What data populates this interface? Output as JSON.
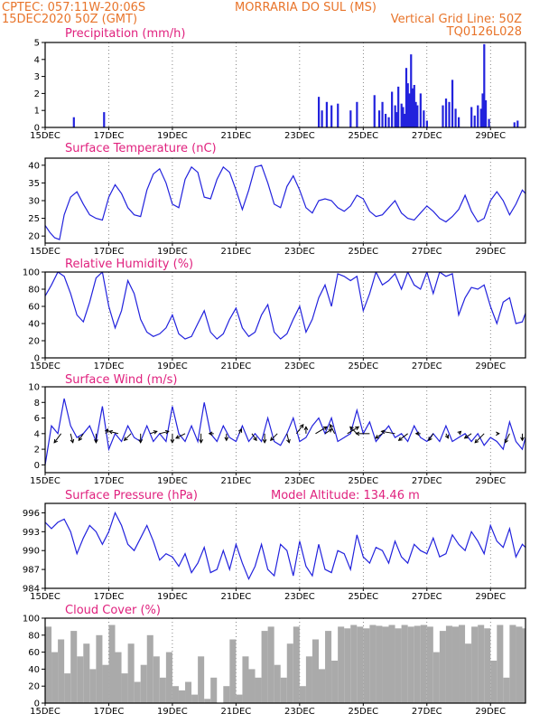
{
  "header": {
    "line1_left": "CPTEC:  057:11W-20:06S",
    "line1_right": "MORRARIA DO SUL (MS)",
    "line2_left": "15DEC2020 50Z (GMT)",
    "line2_right": "Vertical Grid Line: 50Z",
    "line3_right": "TQ0126L028",
    "model_altitude": "Model Altitude: 134.46 m"
  },
  "colors": {
    "header": "#e8742a",
    "title": "#e0217e",
    "series": "#2222dd",
    "cloud": "#aaaaaa",
    "arrow": "#000000"
  },
  "chart_data": [
    {
      "type": "bar",
      "title": "Precipitation (mm/h)",
      "ylim": [
        0,
        5
      ],
      "yticks": [
        0,
        1,
        2,
        3,
        4,
        5
      ],
      "xlim": [
        15,
        30.1
      ],
      "x_tick_positions": [
        15,
        17,
        19,
        21,
        23,
        25,
        27,
        29
      ],
      "x_tick_labels": [
        "15DEC",
        "17DEC",
        "19DEC",
        "21DEC",
        "23DEC",
        "25DEC",
        "27DEC",
        "29DEC"
      ],
      "x": [
        15.9,
        16.85,
        23.6,
        23.7,
        23.85,
        24.0,
        24.2,
        24.6,
        24.8,
        25.35,
        25.5,
        25.6,
        25.7,
        25.8,
        25.9,
        26.0,
        26.05,
        26.1,
        26.2,
        26.25,
        26.3,
        26.35,
        26.4,
        26.45,
        26.5,
        26.55,
        26.6,
        26.65,
        26.7,
        26.8,
        26.9,
        27.0,
        27.5,
        27.6,
        27.7,
        27.8,
        27.9,
        28.0,
        28.4,
        28.5,
        28.6,
        28.7,
        28.75,
        28.8,
        28.85,
        28.95,
        29.75,
        29.85
      ],
      "values": [
        0.6,
        0.9,
        1.8,
        1.0,
        1.5,
        1.3,
        1.4,
        1.0,
        1.5,
        1.9,
        1.0,
        1.5,
        0.8,
        0.6,
        2.1,
        1.3,
        0.9,
        2.4,
        1.4,
        1.2,
        0.8,
        3.5,
        2.6,
        2.0,
        4.3,
        2.3,
        2.5,
        1.5,
        1.3,
        2.0,
        1.0,
        0.4,
        1.3,
        1.7,
        1.5,
        2.8,
        1.1,
        0.6,
        1.2,
        0.7,
        1.3,
        1.1,
        2.0,
        4.9,
        1.6,
        0.5,
        0.3,
        0.4
      ]
    },
    {
      "type": "line",
      "title": "Surface Temperature (nC)",
      "ylim": [
        18,
        42
      ],
      "yticks": [
        20,
        25,
        30,
        35,
        40
      ],
      "xlim": [
        15,
        30.1
      ],
      "x_tick_positions": [
        15,
        17,
        19,
        21,
        23,
        25,
        27,
        29
      ],
      "x_tick_labels": [
        "15DEC",
        "17DEC",
        "19DEC",
        "21DEC",
        "23DEC",
        "25DEC",
        "27DEC",
        "29DEC"
      ],
      "x": [
        15.0,
        15.15,
        15.3,
        15.45,
        15.6,
        15.8,
        16.0,
        16.2,
        16.4,
        16.6,
        16.8,
        17.0,
        17.2,
        17.4,
        17.6,
        17.8,
        18.0,
        18.2,
        18.4,
        18.6,
        18.8,
        19.0,
        19.2,
        19.4,
        19.6,
        19.8,
        20.0,
        20.2,
        20.4,
        20.6,
        20.8,
        21.0,
        21.2,
        21.4,
        21.6,
        21.8,
        22.0,
        22.2,
        22.4,
        22.6,
        22.8,
        23.0,
        23.2,
        23.4,
        23.6,
        23.8,
        24.0,
        24.2,
        24.4,
        24.6,
        24.8,
        25.0,
        25.2,
        25.4,
        25.6,
        25.8,
        26.0,
        26.2,
        26.4,
        26.6,
        26.8,
        27.0,
        27.2,
        27.4,
        27.6,
        27.8,
        28.0,
        28.2,
        28.4,
        28.6,
        28.8,
        29.0,
        29.2,
        29.4,
        29.6,
        29.8,
        30.0,
        30.1
      ],
      "values": [
        23,
        21,
        19.5,
        19,
        26,
        31,
        32.5,
        29,
        26,
        25,
        24.5,
        31,
        34.5,
        32,
        28,
        26,
        25.5,
        33,
        37.5,
        39,
        35,
        29,
        28,
        36,
        39.5,
        38,
        31,
        30.5,
        36,
        39.5,
        38,
        33,
        27.5,
        33,
        39.5,
        40,
        35,
        29,
        28,
        34,
        37,
        33,
        28,
        26.5,
        30,
        30.5,
        30,
        28,
        27,
        28.5,
        31.5,
        30.5,
        27,
        25.5,
        26,
        28,
        30,
        26.5,
        25,
        24.5,
        26.5,
        28.5,
        27,
        25,
        24,
        25.5,
        27.5,
        31.5,
        27,
        24,
        25,
        30,
        32.5,
        30,
        26,
        29,
        33,
        32
      ]
    },
    {
      "type": "line",
      "title": "Relative Humidity (%)",
      "ylim": [
        0,
        100
      ],
      "yticks": [
        0,
        20,
        40,
        60,
        80,
        100
      ],
      "xlim": [
        15,
        30.1
      ],
      "x_tick_positions": [
        15,
        17,
        19,
        21,
        23,
        25,
        27,
        29
      ],
      "x_tick_labels": [
        "15DEC",
        "17DEC",
        "19DEC",
        "21DEC",
        "23DEC",
        "25DEC",
        "27DEC",
        "29DEC"
      ],
      "x": [
        15.0,
        15.2,
        15.4,
        15.6,
        15.8,
        16.0,
        16.2,
        16.4,
        16.6,
        16.8,
        17.0,
        17.2,
        17.4,
        17.6,
        17.8,
        18.0,
        18.2,
        18.4,
        18.6,
        18.8,
        19.0,
        19.2,
        19.4,
        19.6,
        19.8,
        20.0,
        20.2,
        20.4,
        20.6,
        20.8,
        21.0,
        21.2,
        21.4,
        21.6,
        21.8,
        22.0,
        22.2,
        22.4,
        22.6,
        22.8,
        23.0,
        23.2,
        23.4,
        23.6,
        23.8,
        24.0,
        24.2,
        24.4,
        24.6,
        24.8,
        25.0,
        25.2,
        25.4,
        25.6,
        25.8,
        26.0,
        26.2,
        26.4,
        26.6,
        26.8,
        27.0,
        27.2,
        27.4,
        27.6,
        27.8,
        28.0,
        28.2,
        28.4,
        28.6,
        28.8,
        29.0,
        29.2,
        29.4,
        29.6,
        29.8,
        30.0,
        30.1
      ],
      "values": [
        72,
        85,
        100,
        95,
        75,
        50,
        42,
        65,
        93,
        100,
        60,
        35,
        55,
        90,
        75,
        45,
        30,
        25,
        28,
        35,
        50,
        28,
        22,
        25,
        40,
        55,
        30,
        22,
        28,
        45,
        58,
        35,
        25,
        30,
        50,
        62,
        30,
        22,
        28,
        45,
        60,
        30,
        45,
        70,
        85,
        60,
        98,
        95,
        90,
        95,
        55,
        75,
        100,
        85,
        90,
        98,
        80,
        100,
        85,
        80,
        100,
        75,
        100,
        95,
        98,
        50,
        70,
        82,
        80,
        85,
        60,
        40,
        65,
        70,
        40,
        42,
        52
      ]
    },
    {
      "type": "line",
      "title": "Surface Wind (m/s)",
      "ylim": [
        -1,
        10
      ],
      "yticks": [
        0,
        2,
        4,
        6,
        8,
        10
      ],
      "xlim": [
        15,
        30.1
      ],
      "x_tick_positions": [
        15,
        17,
        19,
        21,
        23,
        25,
        27,
        29
      ],
      "x_tick_labels": [
        "15DEC",
        "17DEC",
        "19DEC",
        "21DEC",
        "23DEC",
        "25DEC",
        "27DEC",
        "29DEC"
      ],
      "x": [
        15.0,
        15.2,
        15.4,
        15.6,
        15.8,
        16.0,
        16.2,
        16.4,
        16.6,
        16.8,
        17.0,
        17.2,
        17.4,
        17.6,
        17.8,
        18.0,
        18.2,
        18.4,
        18.6,
        18.8,
        19.0,
        19.2,
        19.4,
        19.6,
        19.8,
        20.0,
        20.2,
        20.4,
        20.6,
        20.8,
        21.0,
        21.2,
        21.4,
        21.6,
        21.8,
        22.0,
        22.2,
        22.4,
        22.6,
        22.8,
        23.0,
        23.2,
        23.4,
        23.6,
        23.8,
        24.0,
        24.2,
        24.4,
        24.6,
        24.8,
        25.0,
        25.2,
        25.4,
        25.6,
        25.8,
        26.0,
        26.2,
        26.4,
        26.6,
        26.8,
        27.0,
        27.2,
        27.4,
        27.6,
        27.8,
        28.0,
        28.2,
        28.4,
        28.6,
        28.8,
        29.0,
        29.2,
        29.4,
        29.6,
        29.8,
        30.0,
        30.1
      ],
      "values": [
        0,
        5,
        4,
        8.5,
        5,
        3.5,
        4,
        5,
        3,
        7.5,
        2,
        4,
        3,
        5,
        3.5,
        3,
        5,
        3,
        4,
        3,
        7.5,
        4,
        3,
        5,
        3,
        8,
        4,
        3,
        5,
        3.5,
        3,
        5,
        3,
        4,
        3,
        6,
        3,
        2.5,
        4,
        6,
        3,
        3.5,
        5,
        6,
        4,
        6,
        3,
        3.5,
        4,
        7,
        4,
        5.5,
        3,
        4,
        5,
        3.5,
        4,
        3,
        5,
        3.5,
        3,
        4,
        3,
        5,
        3,
        3.5,
        4,
        3,
        4,
        2.5,
        3.5,
        3,
        2,
        5.5,
        3,
        2,
        3.5
      ],
      "vector_x": [
        15.5,
        15.8,
        16.2,
        16.6,
        16.9,
        17.3,
        17.7,
        18.0,
        18.3,
        18.6,
        19.0,
        19.4,
        19.9,
        20.3,
        20.7,
        21.1,
        21.5,
        21.9,
        22.3,
        22.6,
        22.9,
        23.2,
        23.5,
        23.8,
        24.1,
        24.5,
        24.8,
        25.2,
        25.6,
        26.0,
        26.4,
        26.8,
        27.2,
        27.6,
        28.0,
        28.4,
        28.8,
        29.2,
        29.6,
        30.0
      ],
      "vector_u": [
        -1.5,
        0.5,
        -1,
        0,
        0.5,
        -2,
        -1.5,
        0,
        1.5,
        2,
        0,
        -2,
        0,
        -1,
        0,
        0.5,
        1,
        0,
        -1.5,
        0.5,
        1.5,
        0,
        2.5,
        1.5,
        -1,
        2.5,
        -1.5,
        -3,
        -1.5,
        -3,
        -2,
        -1,
        -1,
        0.5,
        0.5,
        -1.5,
        -2,
        0.5,
        -1,
        0
      ],
      "vector_v": [
        -2,
        -2,
        -1.5,
        -2,
        1,
        0.5,
        -1.5,
        -2,
        0.5,
        0.5,
        -2,
        -1,
        -2,
        0,
        -1.5,
        1,
        -1.5,
        -2,
        -1.5,
        -2,
        2,
        1.5,
        1.5,
        1,
        2,
        1.5,
        1.5,
        0,
        -1,
        0.5,
        -1.5,
        0,
        -1.5,
        -1,
        0.5,
        -1,
        -2,
        0,
        -2,
        -1.5
      ]
    },
    {
      "type": "line",
      "title": "Surface Pressure (hPa)",
      "ylim": [
        984,
        997.5
      ],
      "yticks": [
        984,
        987,
        990,
        993,
        996
      ],
      "xlim": [
        15,
        30.1
      ],
      "x_tick_positions": [
        15,
        17,
        19,
        21,
        23,
        25,
        27,
        29
      ],
      "x_tick_labels": [
        "15DEC",
        "17DEC",
        "19DEC",
        "21DEC",
        "23DEC",
        "25DEC",
        "27DEC",
        "29DEC"
      ],
      "x": [
        15.0,
        15.2,
        15.4,
        15.6,
        15.8,
        16.0,
        16.2,
        16.4,
        16.6,
        16.8,
        17.0,
        17.2,
        17.4,
        17.6,
        17.8,
        18.0,
        18.2,
        18.4,
        18.6,
        18.8,
        19.0,
        19.2,
        19.4,
        19.6,
        19.8,
        20.0,
        20.2,
        20.4,
        20.6,
        20.8,
        21.0,
        21.2,
        21.4,
        21.6,
        21.8,
        22.0,
        22.2,
        22.4,
        22.6,
        22.8,
        23.0,
        23.2,
        23.4,
        23.6,
        23.8,
        24.0,
        24.2,
        24.4,
        24.6,
        24.8,
        25.0,
        25.2,
        25.4,
        25.6,
        25.8,
        26.0,
        26.2,
        26.4,
        26.6,
        26.8,
        27.0,
        27.2,
        27.4,
        27.6,
        27.8,
        28.0,
        28.2,
        28.4,
        28.6,
        28.8,
        29.0,
        29.2,
        29.4,
        29.6,
        29.8,
        30.0,
        30.1
      ],
      "values": [
        994.5,
        993.5,
        994.5,
        995,
        993,
        989.5,
        992,
        994,
        993,
        991,
        993,
        996,
        994,
        991,
        990,
        992,
        994,
        991.5,
        988.5,
        989.5,
        989,
        987.5,
        989.5,
        986.5,
        988,
        990.5,
        986.5,
        987,
        990,
        987,
        991,
        988,
        985.5,
        987.5,
        991,
        987,
        986,
        991,
        990,
        986,
        991.5,
        987.5,
        986,
        991,
        987,
        986.5,
        990,
        989.5,
        987,
        992.5,
        989,
        988,
        990.5,
        990,
        988,
        991.5,
        989,
        988,
        991,
        990,
        989.5,
        992,
        989,
        989.5,
        992.5,
        991,
        990,
        993,
        991.5,
        989.5,
        994,
        991.5,
        990.5,
        993.5,
        989,
        991,
        990.5
      ]
    },
    {
      "type": "area",
      "title": "Cloud Cover (%)",
      "ylim": [
        0,
        100
      ],
      "yticks": [
        0,
        20,
        40,
        60,
        80,
        100
      ],
      "xlim": [
        15,
        30.1
      ],
      "x_tick_positions": [
        15,
        17,
        19,
        21,
        23,
        25,
        27,
        29
      ],
      "x_tick_labels": [
        "15DEC",
        "17DEC",
        "19DEC",
        "21DEC",
        "23DEC",
        "25DEC",
        "27DEC",
        "29DEC"
      ],
      "x": [
        15.0,
        15.2,
        15.4,
        15.6,
        15.8,
        16.0,
        16.2,
        16.4,
        16.6,
        16.8,
        17.0,
        17.2,
        17.4,
        17.6,
        17.8,
        18.0,
        18.2,
        18.4,
        18.6,
        18.8,
        19.0,
        19.2,
        19.4,
        19.6,
        19.8,
        20.0,
        20.2,
        20.4,
        20.6,
        20.8,
        21.0,
        21.2,
        21.4,
        21.6,
        21.8,
        22.0,
        22.2,
        22.4,
        22.6,
        22.8,
        23.0,
        23.2,
        23.4,
        23.6,
        23.8,
        24.0,
        24.2,
        24.4,
        24.6,
        24.8,
        25.0,
        25.2,
        25.4,
        25.6,
        25.8,
        26.0,
        26.2,
        26.4,
        26.6,
        26.8,
        27.0,
        27.2,
        27.4,
        27.6,
        27.8,
        28.0,
        28.2,
        28.4,
        28.6,
        28.8,
        29.0,
        29.2,
        29.4,
        29.6,
        29.8,
        30.0,
        30.1
      ],
      "values": [
        90,
        60,
        75,
        35,
        85,
        55,
        70,
        40,
        80,
        45,
        92,
        60,
        35,
        70,
        25,
        45,
        80,
        55,
        30,
        60,
        20,
        15,
        25,
        10,
        55,
        5,
        30,
        0,
        20,
        75,
        10,
        55,
        40,
        30,
        85,
        90,
        45,
        30,
        70,
        90,
        20,
        55,
        75,
        40,
        85,
        50,
        90,
        88,
        92,
        90,
        88,
        92,
        91,
        90,
        92,
        88,
        92,
        90,
        91,
        92,
        90,
        60,
        85,
        91,
        90,
        92,
        70,
        90,
        92,
        88,
        50,
        92,
        30,
        92,
        90,
        88,
        92
      ]
    }
  ]
}
